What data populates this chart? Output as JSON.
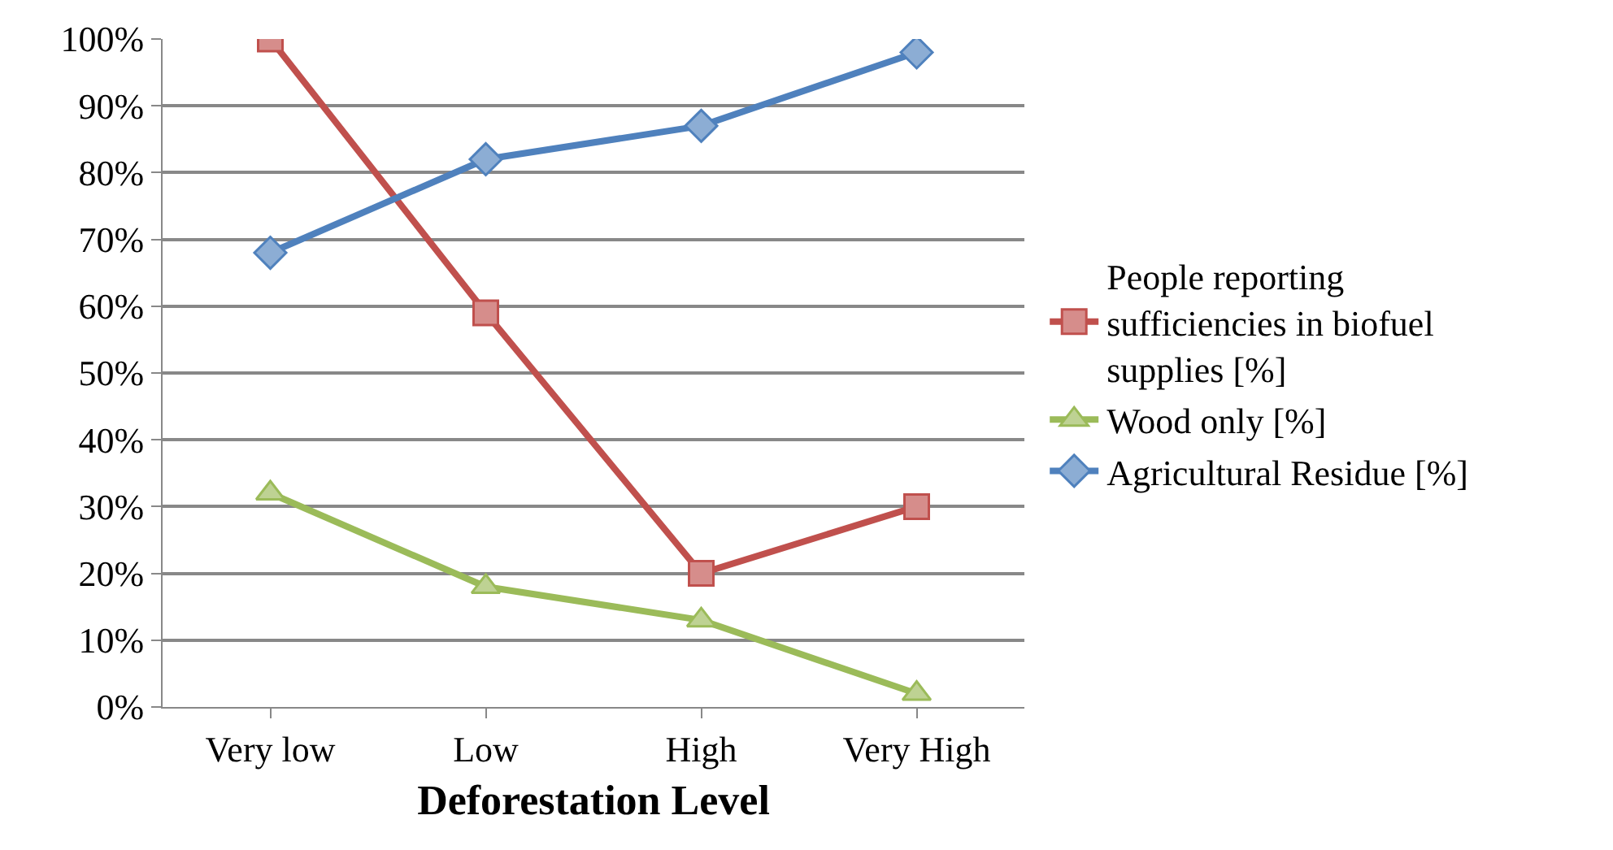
{
  "chart_data": {
    "type": "line",
    "xlabel": "Deforestation Level",
    "categories": [
      "Very low",
      "Low",
      "High",
      "Very High"
    ],
    "series": [
      {
        "name": "People reporting sufficiencies in biofuel supplies [%]",
        "color": "#c0504d",
        "values": [
          100,
          59,
          20,
          30
        ],
        "marker": "square"
      },
      {
        "name": "Wood only [%]",
        "color": "#9bbb59",
        "values": [
          32,
          18,
          13,
          2
        ],
        "marker": "triangle"
      },
      {
        "name": "Agricultural Residue [%]",
        "color": "#4f81bd",
        "values": [
          68,
          82,
          87,
          98
        ],
        "marker": "diamond"
      }
    ],
    "ylim": [
      0,
      100
    ],
    "yticks": [
      {
        "value": 0,
        "label": "0%"
      },
      {
        "value": 10,
        "label": "10%"
      },
      {
        "value": 20,
        "label": "20%"
      },
      {
        "value": 30,
        "label": "30%"
      },
      {
        "value": 40,
        "label": "40%"
      },
      {
        "value": 50,
        "label": "50%"
      },
      {
        "value": 60,
        "label": "60%"
      },
      {
        "value": 70,
        "label": "70%"
      },
      {
        "value": 80,
        "label": "80%"
      },
      {
        "value": 90,
        "label": "90%"
      },
      {
        "value": 100,
        "label": "100%"
      }
    ],
    "grid": "y",
    "legend": "right",
    "line_style": "solid"
  }
}
